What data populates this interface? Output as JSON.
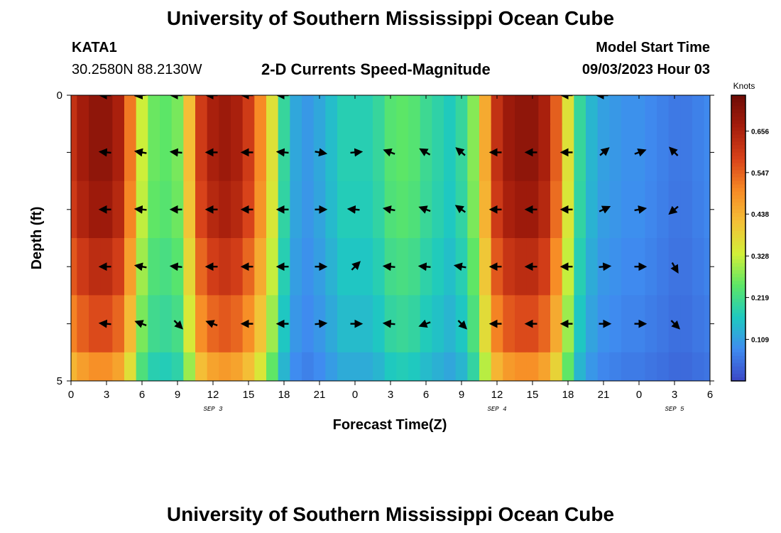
{
  "page": {
    "title": "University of Southern Mississippi Ocean Cube",
    "station_id": "KATA1",
    "station_coords": "30.2580N  88.2130W",
    "chart_heading": "2-D Currents Speed-Magnitude",
    "model_start_label": "Model Start Time",
    "model_start_value": "09/03/2023 Hour 03",
    "footer_title": "University of Southern Mississippi Ocean Cube"
  },
  "colors": {
    "colormap": [
      "#3b47c6",
      "#3f8cf0",
      "#1ec9c0",
      "#5ce667",
      "#d2ef38",
      "#f4c037",
      "#f78a25",
      "#d8421a",
      "#a51d0c",
      "#6e0c06"
    ]
  },
  "chart_data": {
    "type": "heatmap",
    "title": "2-D Currents Speed-Magnitude",
    "xlabel": "Forecast Time(Z)",
    "ylabel": "Depth (ft)",
    "x_ticks": [
      "0",
      "3",
      "6",
      "9",
      "12",
      "15",
      "18",
      "21",
      "0",
      "3",
      "6",
      "9",
      "12",
      "15",
      "18",
      "21",
      "0",
      "3",
      "6"
    ],
    "x_hours": [
      0,
      3,
      6,
      9,
      12,
      15,
      18,
      21,
      24,
      27,
      30,
      33,
      36,
      39,
      42,
      45,
      48,
      51,
      54
    ],
    "xlim": [
      0,
      54
    ],
    "date_labels": [
      {
        "text": "SEP 3",
        "hour": 12
      },
      {
        "text": "SEP 4",
        "hour": 36
      },
      {
        "text": "SEP 5",
        "hour": 51
      }
    ],
    "y_ticks": [
      "0",
      "5"
    ],
    "ylim": [
      0,
      5
    ],
    "depth_rows": [
      0,
      1,
      2,
      3,
      4,
      5
    ],
    "colorbar": {
      "label": "Knots",
      "min": 0.0,
      "max": 0.75,
      "ticks": [
        "0.656",
        "0.547",
        "0.438",
        "0.328",
        "0.219",
        "0.109"
      ],
      "tick_values": [
        0.656,
        0.547,
        0.438,
        0.328,
        0.219,
        0.109
      ]
    },
    "speed_profile_hours": [
      0,
      1,
      2,
      3,
      4,
      5,
      6,
      7,
      8,
      9,
      10,
      11,
      12,
      13,
      14,
      15,
      16,
      17,
      18,
      19,
      20,
      21,
      22,
      23,
      24,
      25,
      26,
      27,
      28,
      29,
      30,
      31,
      32,
      33,
      34,
      35,
      36,
      37,
      38,
      39,
      40,
      41,
      42,
      43,
      44,
      45,
      46,
      47,
      48,
      49,
      50,
      51,
      52,
      53,
      54
    ],
    "speed_profile_knots": [
      0.62,
      0.67,
      0.7,
      0.7,
      0.66,
      0.52,
      0.33,
      0.26,
      0.25,
      0.27,
      0.42,
      0.6,
      0.66,
      0.68,
      0.66,
      0.6,
      0.5,
      0.36,
      0.2,
      0.12,
      0.1,
      0.12,
      0.15,
      0.18,
      0.18,
      0.18,
      0.2,
      0.24,
      0.25,
      0.24,
      0.21,
      0.19,
      0.17,
      0.2,
      0.28,
      0.45,
      0.62,
      0.68,
      0.7,
      0.7,
      0.66,
      0.55,
      0.36,
      0.2,
      0.14,
      0.11,
      0.1,
      0.09,
      0.09,
      0.08,
      0.07,
      0.06,
      0.06,
      0.07,
      0.08
    ],
    "depth_factor": [
      1.0,
      1.0,
      0.97,
      0.9,
      0.82,
      0.7
    ],
    "arrows": [
      {
        "hour": 3,
        "depth": 0,
        "dir": 180
      },
      {
        "hour": 6,
        "depth": 0,
        "dir": 185
      },
      {
        "hour": 9,
        "depth": 0,
        "dir": 180
      },
      {
        "hour": 12,
        "depth": 0,
        "dir": 180
      },
      {
        "hour": 15,
        "depth": 0,
        "dir": 180
      },
      {
        "hour": 18,
        "depth": 0,
        "dir": 180
      },
      {
        "hour": 42,
        "depth": 0,
        "dir": 180
      },
      {
        "hour": 45,
        "depth": 0,
        "dir": 180
      },
      {
        "hour": 3,
        "depth": 1,
        "dir": 175
      },
      {
        "hour": 6,
        "depth": 1,
        "dir": 170
      },
      {
        "hour": 9,
        "depth": 1,
        "dir": 175
      },
      {
        "hour": 12,
        "depth": 1,
        "dir": 180
      },
      {
        "hour": 15,
        "depth": 1,
        "dir": 180
      },
      {
        "hour": 18,
        "depth": 1,
        "dir": 175
      },
      {
        "hour": 21,
        "depth": 1,
        "dir": 350
      },
      {
        "hour": 24,
        "depth": 1,
        "dir": 5
      },
      {
        "hour": 27,
        "depth": 1,
        "dir": 160
      },
      {
        "hour": 30,
        "depth": 1,
        "dir": 150
      },
      {
        "hour": 33,
        "depth": 1,
        "dir": 140
      },
      {
        "hour": 36,
        "depth": 1,
        "dir": 180
      },
      {
        "hour": 39,
        "depth": 1,
        "dir": 180
      },
      {
        "hour": 42,
        "depth": 1,
        "dir": 180
      },
      {
        "hour": 45,
        "depth": 1,
        "dir": 40
      },
      {
        "hour": 48,
        "depth": 1,
        "dir": 20
      },
      {
        "hour": 51,
        "depth": 1,
        "dir": 135
      },
      {
        "hour": 3,
        "depth": 2,
        "dir": 180
      },
      {
        "hour": 6,
        "depth": 2,
        "dir": 175
      },
      {
        "hour": 9,
        "depth": 2,
        "dir": 180
      },
      {
        "hour": 12,
        "depth": 2,
        "dir": 180
      },
      {
        "hour": 15,
        "depth": 2,
        "dir": 180
      },
      {
        "hour": 18,
        "depth": 2,
        "dir": 180
      },
      {
        "hour": 21,
        "depth": 2,
        "dir": 0
      },
      {
        "hour": 24,
        "depth": 2,
        "dir": 175
      },
      {
        "hour": 27,
        "depth": 2,
        "dir": 170
      },
      {
        "hour": 30,
        "depth": 2,
        "dir": 160
      },
      {
        "hour": 33,
        "depth": 2,
        "dir": 145
      },
      {
        "hour": 36,
        "depth": 2,
        "dir": 180
      },
      {
        "hour": 39,
        "depth": 2,
        "dir": 180
      },
      {
        "hour": 42,
        "depth": 2,
        "dir": 180
      },
      {
        "hour": 45,
        "depth": 2,
        "dir": 25
      },
      {
        "hour": 48,
        "depth": 2,
        "dir": 10
      },
      {
        "hour": 51,
        "depth": 2,
        "dir": 220
      },
      {
        "hour": 3,
        "depth": 3,
        "dir": 180
      },
      {
        "hour": 6,
        "depth": 3,
        "dir": 170
      },
      {
        "hour": 9,
        "depth": 3,
        "dir": 175
      },
      {
        "hour": 12,
        "depth": 3,
        "dir": 180
      },
      {
        "hour": 15,
        "depth": 3,
        "dir": 180
      },
      {
        "hour": 18,
        "depth": 3,
        "dir": 180
      },
      {
        "hour": 21,
        "depth": 3,
        "dir": 0
      },
      {
        "hour": 24,
        "depth": 3,
        "dir": 45
      },
      {
        "hour": 27,
        "depth": 3,
        "dir": 175
      },
      {
        "hour": 30,
        "depth": 3,
        "dir": 175
      },
      {
        "hour": 33,
        "depth": 3,
        "dir": 170
      },
      {
        "hour": 36,
        "depth": 3,
        "dir": 180
      },
      {
        "hour": 39,
        "depth": 3,
        "dir": 180
      },
      {
        "hour": 42,
        "depth": 3,
        "dir": 180
      },
      {
        "hour": 45,
        "depth": 3,
        "dir": 5
      },
      {
        "hour": 48,
        "depth": 3,
        "dir": 0
      },
      {
        "hour": 51,
        "depth": 3,
        "dir": 300
      },
      {
        "hour": 3,
        "depth": 4,
        "dir": 175
      },
      {
        "hour": 6,
        "depth": 4,
        "dir": 160
      },
      {
        "hour": 9,
        "depth": 4,
        "dir": 315
      },
      {
        "hour": 12,
        "depth": 4,
        "dir": 160
      },
      {
        "hour": 15,
        "depth": 4,
        "dir": 180
      },
      {
        "hour": 18,
        "depth": 4,
        "dir": 180
      },
      {
        "hour": 21,
        "depth": 4,
        "dir": 5
      },
      {
        "hour": 24,
        "depth": 4,
        "dir": 0
      },
      {
        "hour": 27,
        "depth": 4,
        "dir": 175
      },
      {
        "hour": 30,
        "depth": 4,
        "dir": 200
      },
      {
        "hour": 33,
        "depth": 4,
        "dir": 315
      },
      {
        "hour": 36,
        "depth": 4,
        "dir": 180
      },
      {
        "hour": 39,
        "depth": 4,
        "dir": 180
      },
      {
        "hour": 42,
        "depth": 4,
        "dir": 180
      },
      {
        "hour": 45,
        "depth": 4,
        "dir": 0
      },
      {
        "hour": 48,
        "depth": 4,
        "dir": 0
      },
      {
        "hour": 51,
        "depth": 4,
        "dir": 315
      }
    ]
  }
}
